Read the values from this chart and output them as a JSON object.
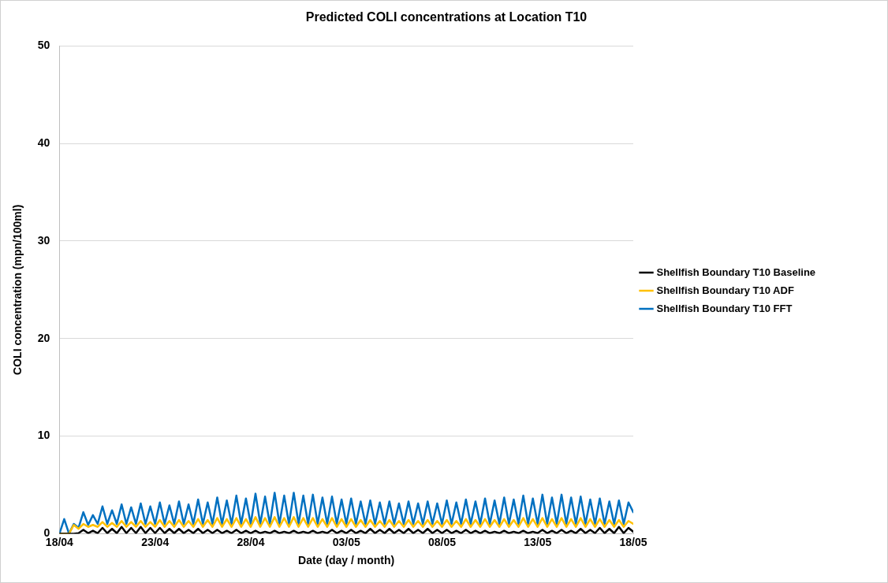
{
  "chart_data": {
    "type": "line",
    "title": "Predicted COLI concentrations at Location T10",
    "xlabel": "Date (day / month)",
    "ylabel": "COLI concentration (mpn/100ml)",
    "x": [
      "--04-18T00:00",
      "--04-18T06:00",
      "--04-18T12:00",
      "--04-18T18:00",
      "--04-19T00:00",
      "--04-19T06:00",
      "--04-19T12:00",
      "--04-19T18:00",
      "--04-20T00:00",
      "--04-20T06:00",
      "--04-20T12:00",
      "--04-20T18:00",
      "--04-21T00:00",
      "--04-21T06:00",
      "--04-21T12:00",
      "--04-21T18:00",
      "--04-22T00:00",
      "--04-22T06:00",
      "--04-22T12:00",
      "--04-22T18:00",
      "--04-23T00:00",
      "--04-23T06:00",
      "--04-23T12:00",
      "--04-23T18:00",
      "--04-24T00:00",
      "--04-24T06:00",
      "--04-24T12:00",
      "--04-24T18:00",
      "--04-25T00:00",
      "--04-25T06:00",
      "--04-25T12:00",
      "--04-25T18:00",
      "--04-26T00:00",
      "--04-26T06:00",
      "--04-26T12:00",
      "--04-26T18:00",
      "--04-27T00:00",
      "--04-27T06:00",
      "--04-27T12:00",
      "--04-27T18:00",
      "--04-28T00:00",
      "--04-28T06:00",
      "--04-28T12:00",
      "--04-28T18:00",
      "--04-29T00:00",
      "--04-29T06:00",
      "--04-29T12:00",
      "--04-29T18:00",
      "--04-30T00:00",
      "--04-30T06:00",
      "--04-30T12:00",
      "--04-30T18:00",
      "--05-01T00:00",
      "--05-01T06:00",
      "--05-01T12:00",
      "--05-01T18:00",
      "--05-02T00:00",
      "--05-02T06:00",
      "--05-02T12:00",
      "--05-02T18:00",
      "--05-03T00:00",
      "--05-03T06:00",
      "--05-03T12:00",
      "--05-03T18:00",
      "--05-04T00:00",
      "--05-04T06:00",
      "--05-04T12:00",
      "--05-04T18:00",
      "--05-05T00:00",
      "--05-05T06:00",
      "--05-05T12:00",
      "--05-05T18:00",
      "--05-06T00:00",
      "--05-06T06:00",
      "--05-06T12:00",
      "--05-06T18:00",
      "--05-07T00:00",
      "--05-07T06:00",
      "--05-07T12:00",
      "--05-07T18:00",
      "--05-08T00:00",
      "--05-08T06:00",
      "--05-08T12:00",
      "--05-08T18:00",
      "--05-09T00:00",
      "--05-09T06:00",
      "--05-09T12:00",
      "--05-09T18:00",
      "--05-10T00:00",
      "--05-10T06:00",
      "--05-10T12:00",
      "--05-10T18:00",
      "--05-11T00:00",
      "--05-11T06:00",
      "--05-11T12:00",
      "--05-11T18:00",
      "--05-12T00:00",
      "--05-12T06:00",
      "--05-12T12:00",
      "--05-12T18:00",
      "--05-13T00:00",
      "--05-13T06:00",
      "--05-13T12:00",
      "--05-13T18:00",
      "--05-14T00:00",
      "--05-14T06:00",
      "--05-14T12:00",
      "--05-14T18:00",
      "--05-15T00:00",
      "--05-15T06:00",
      "--05-15T12:00",
      "--05-15T18:00",
      "--05-16T00:00",
      "--05-16T06:00",
      "--05-16T12:00",
      "--05-16T18:00",
      "--05-17T00:00",
      "--05-17T06:00",
      "--05-17T12:00",
      "--05-17T18:00",
      "--05-18T00:00"
    ],
    "series": [
      {
        "name": "Shellfish Boundary T10 Baseline",
        "color": "#000000",
        "values": [
          0,
          0,
          0,
          0,
          0.05,
          0.4,
          0.05,
          0.3,
          0.05,
          0.6,
          0.05,
          0.5,
          0.05,
          0.7,
          0.05,
          0.6,
          0.05,
          0.7,
          0.05,
          0.6,
          0.05,
          0.6,
          0.05,
          0.5,
          0.05,
          0.5,
          0.05,
          0.4,
          0.05,
          0.5,
          0.05,
          0.4,
          0.05,
          0.4,
          0.05,
          0.3,
          0.05,
          0.4,
          0.05,
          0.3,
          0.05,
          0.3,
          0.05,
          0.2,
          0.05,
          0.3,
          0.05,
          0.2,
          0.05,
          0.3,
          0.05,
          0.2,
          0.05,
          0.3,
          0.05,
          0.2,
          0.05,
          0.4,
          0.05,
          0.3,
          0.05,
          0.4,
          0.05,
          0.3,
          0.05,
          0.5,
          0.05,
          0.4,
          0.05,
          0.5,
          0.05,
          0.4,
          0.05,
          0.5,
          0.05,
          0.4,
          0.05,
          0.5,
          0.05,
          0.4,
          0.05,
          0.4,
          0.05,
          0.3,
          0.05,
          0.4,
          0.05,
          0.3,
          0.05,
          0.3,
          0.05,
          0.2,
          0.05,
          0.3,
          0.05,
          0.2,
          0.05,
          0.3,
          0.05,
          0.2,
          0.05,
          0.4,
          0.05,
          0.3,
          0.05,
          0.4,
          0.05,
          0.3,
          0.05,
          0.5,
          0.05,
          0.4,
          0.05,
          0.6,
          0.05,
          0.5,
          0.05,
          0.7,
          0.05,
          0.6,
          0.2
        ]
      },
      {
        "name": "Shellfish Boundary T10 ADF",
        "color": "#ffc000",
        "values": [
          0,
          0,
          0,
          0.9,
          0.5,
          1.0,
          0.7,
          0.9,
          0.7,
          1.2,
          0.7,
          1.1,
          0.7,
          1.3,
          0.7,
          1.2,
          0.7,
          1.3,
          0.7,
          1.2,
          0.7,
          1.4,
          0.7,
          1.3,
          0.7,
          1.4,
          0.7,
          1.3,
          0.7,
          1.5,
          0.7,
          1.4,
          0.7,
          1.6,
          0.7,
          1.5,
          0.7,
          1.6,
          0.7,
          1.5,
          0.7,
          1.7,
          0.7,
          1.6,
          0.7,
          1.7,
          0.7,
          1.6,
          0.7,
          1.7,
          0.7,
          1.6,
          0.7,
          1.6,
          0.7,
          1.5,
          0.7,
          1.6,
          0.7,
          1.5,
          0.7,
          1.5,
          0.7,
          1.4,
          0.7,
          1.4,
          0.7,
          1.3,
          0.7,
          1.4,
          0.7,
          1.3,
          0.7,
          1.4,
          0.7,
          1.3,
          0.7,
          1.4,
          0.7,
          1.3,
          0.7,
          1.4,
          0.7,
          1.3,
          0.7,
          1.5,
          0.7,
          1.4,
          0.7,
          1.5,
          0.7,
          1.4,
          0.7,
          1.5,
          0.7,
          1.4,
          0.7,
          1.6,
          0.7,
          1.5,
          0.7,
          1.6,
          0.7,
          1.5,
          0.7,
          1.6,
          0.7,
          1.5,
          0.7,
          1.6,
          0.7,
          1.5,
          0.7,
          1.5,
          0.7,
          1.4,
          0.7,
          1.4,
          0.7,
          1.3,
          1.0
        ]
      },
      {
        "name": "Shellfish Boundary T10 FFT",
        "color": "#0070c0",
        "values": [
          0,
          1.5,
          0,
          1.0,
          0.6,
          2.2,
          0.9,
          1.9,
          1.0,
          2.8,
          1.0,
          2.4,
          1.0,
          3.0,
          1.0,
          2.7,
          1.0,
          3.1,
          1.0,
          2.8,
          1.0,
          3.2,
          1.0,
          2.9,
          1.0,
          3.3,
          1.0,
          3.0,
          1.0,
          3.5,
          1.0,
          3.2,
          1.0,
          3.7,
          1.0,
          3.4,
          1.0,
          3.9,
          1.0,
          3.6,
          1.0,
          4.1,
          1.0,
          3.8,
          1.0,
          4.2,
          1.0,
          3.9,
          1.0,
          4.2,
          1.0,
          3.9,
          1.0,
          4.0,
          1.0,
          3.7,
          1.0,
          3.8,
          1.0,
          3.5,
          1.0,
          3.6,
          1.0,
          3.3,
          1.0,
          3.4,
          1.0,
          3.2,
          1.0,
          3.3,
          1.0,
          3.1,
          1.0,
          3.3,
          1.0,
          3.1,
          1.0,
          3.3,
          1.0,
          3.1,
          1.0,
          3.4,
          1.0,
          3.2,
          1.0,
          3.5,
          1.0,
          3.3,
          1.0,
          3.6,
          1.0,
          3.4,
          1.0,
          3.7,
          1.0,
          3.5,
          1.0,
          3.9,
          1.0,
          3.6,
          1.0,
          4.0,
          1.0,
          3.7,
          1.0,
          4.0,
          1.0,
          3.7,
          1.0,
          3.8,
          1.0,
          3.5,
          1.0,
          3.6,
          1.0,
          3.3,
          1.0,
          3.4,
          1.0,
          3.2,
          2.2
        ]
      }
    ],
    "xlim": [
      "--04-18",
      "--05-18"
    ],
    "xticks": [
      {
        "value": "--04-18",
        "label": "18/04"
      },
      {
        "value": "--04-23",
        "label": "23/04"
      },
      {
        "value": "--04-28",
        "label": "28/04"
      },
      {
        "value": "--05-03",
        "label": "03/05"
      },
      {
        "value": "--05-08",
        "label": "08/05"
      },
      {
        "value": "--05-13",
        "label": "13/05"
      },
      {
        "value": "--05-18",
        "label": "18/05"
      }
    ],
    "ylim": [
      0,
      50
    ],
    "yticks": [
      0,
      10,
      20,
      30,
      40,
      50
    ],
    "grid": "y",
    "legend": "right",
    "marker": "none",
    "line_style": "solid"
  }
}
